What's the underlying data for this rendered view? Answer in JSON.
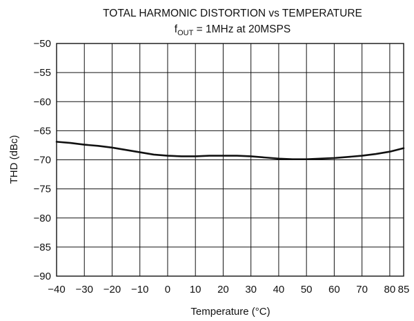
{
  "chart_data": {
    "type": "line",
    "title": "TOTAL HARMONIC DISTORTION vs TEMPERATURE",
    "subtitle": {
      "prefix": "f",
      "subscript": "OUT",
      "suffix": " = 1MHz at 20MSPS"
    },
    "xlabel": "Temperature (°C)",
    "ylabel": "THD (dBc)",
    "xlim": [
      -40,
      85
    ],
    "ylim": [
      -90,
      -50
    ],
    "x_ticks": [
      -40,
      -30,
      -20,
      -10,
      0,
      10,
      20,
      30,
      40,
      50,
      60,
      70,
      80,
      85
    ],
    "x_tick_labels": [
      "−40",
      "−30",
      "−20",
      "−10",
      "0",
      "10",
      "20",
      "30",
      "40",
      "50",
      "60",
      "70",
      "80",
      "85"
    ],
    "y_ticks": [
      -50,
      -55,
      -60,
      -65,
      -70,
      -75,
      -80,
      -85,
      -90
    ],
    "y_tick_labels": [
      "−50",
      "−55",
      "−60",
      "−65",
      "−70",
      "−75",
      "−80",
      "−85",
      "−90"
    ],
    "grid": true,
    "series": [
      {
        "x": [
          -40,
          -35,
          -30,
          -25,
          -20,
          -15,
          -10,
          -5,
          0,
          5,
          10,
          15,
          20,
          25,
          30,
          35,
          40,
          45,
          50,
          55,
          60,
          65,
          70,
          75,
          80,
          85
        ],
        "y": [
          -66.9,
          -67.1,
          -67.4,
          -67.6,
          -67.9,
          -68.3,
          -68.7,
          -69.1,
          -69.3,
          -69.4,
          -69.4,
          -69.3,
          -69.3,
          -69.3,
          -69.4,
          -69.6,
          -69.8,
          -69.9,
          -69.9,
          -69.8,
          -69.7,
          -69.5,
          -69.3,
          -69.0,
          -68.6,
          -68.0
        ],
        "color": "#111111"
      }
    ]
  }
}
